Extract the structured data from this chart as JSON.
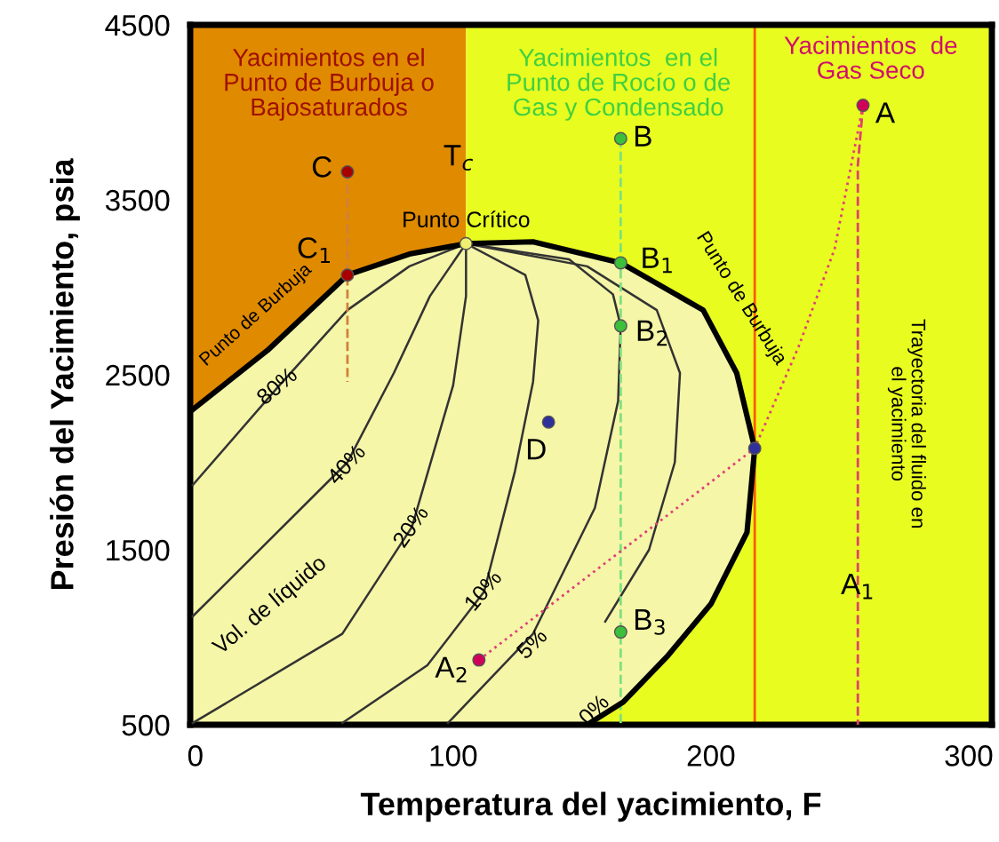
{
  "chart_data": {
    "type": "line",
    "xlabel": "Temperatura del yacimiento, F",
    "ylabel": "Presión del Yacimiento, psia",
    "xlim": [
      -2,
      309
    ],
    "ylim": [
      500,
      4500
    ],
    "xticks": [
      0,
      100,
      200,
      300
    ],
    "yticks": [
      500,
      1500,
      2500,
      3500,
      4500
    ],
    "grid": false,
    "bands": [
      {
        "axis": "x",
        "from": -2,
        "to": 105,
        "color": "#e08a00"
      },
      {
        "axis": "x",
        "from": 105,
        "to": 309,
        "color": "#e8fc20"
      }
    ],
    "ref_lines": [
      {
        "axis": "x",
        "value": 217,
        "color": "#ff5a00",
        "line_style": "solid"
      }
    ],
    "series": [
      {
        "type": "area",
        "color": "#f5f6a8",
        "x": [
          -2,
          28,
          59,
          83,
          105,
          131,
          165,
          197,
          210,
          217,
          214,
          200,
          183,
          166,
          152
        ],
        "values": [
          2290,
          2640,
          3070,
          3190,
          3250,
          3260,
          3140,
          2870,
          2510,
          2080,
          1600,
          1190,
          890,
          630,
          500
        ]
      },
      {
        "color": "#333333",
        "x": [
          105,
          83,
          59,
          32,
          -1
        ],
        "values": [
          3250,
          3120,
          2870,
          2430,
          1870
        ]
      },
      {
        "color": "#333333",
        "x": [
          105,
          91,
          77,
          59,
          -1
        ],
        "values": [
          3250,
          2950,
          2510,
          2000,
          1120
        ]
      },
      {
        "color": "#333333",
        "x": [
          105,
          105,
          100,
          84,
          57,
          -1
        ],
        "values": [
          3250,
          2950,
          2440,
          1630,
          1020,
          510
        ]
      },
      {
        "color": "#333333",
        "x": [
          105,
          128,
          133,
          131,
          124,
          112,
          90,
          57
        ],
        "values": [
          3250,
          3070,
          2810,
          2460,
          1950,
          1260,
          840,
          510
        ]
      },
      {
        "color": "#333333",
        "x": [
          105,
          145,
          162,
          165,
          164,
          155,
          131,
          98
        ],
        "values": [
          3250,
          3160,
          2960,
          2780,
          2350,
          1740,
          1020,
          510
        ]
      },
      {
        "color": "#333333",
        "x": [
          105,
          152,
          179,
          188,
          186,
          176,
          159
        ],
        "values": [
          3250,
          3120,
          2870,
          2510,
          2000,
          1500,
          1090
        ]
      },
      {
        "color": "#d0803c",
        "line_style": "dashed",
        "x": [
          59,
          59
        ],
        "values": [
          3660,
          2460
        ]
      },
      {
        "color": "#7ee07e",
        "line_style": "dashed",
        "x": [
          165,
          165
        ],
        "values": [
          3850,
          500
        ]
      },
      {
        "color": "#e0406a",
        "line_style": "dashed",
        "x": [
          259,
          257,
          257
        ],
        "values": [
          4040,
          3700,
          500
        ]
      },
      {
        "color": "#e0407a",
        "line_style": "dotted",
        "x": [
          110,
          217,
          234,
          248,
          259
        ],
        "values": [
          870,
          2080,
          2660,
          3220,
          4040
        ]
      },
      {
        "type": "scatter",
        "marker": "circle",
        "x": [
          59,
          59,
          105,
          165,
          165,
          165,
          165,
          259,
          110,
          137,
          217
        ],
        "values": [
          3660,
          3070,
          3250,
          3850,
          3140,
          2780,
          1030,
          4040,
          870,
          2230,
          2080
        ],
        "colors": [
          "#a80000",
          "#a80000",
          "#f0f070",
          "#3cc03c",
          "#3cc03c",
          "#3cc03c",
          "#3cc03c",
          "#d0005a",
          "#d0005a",
          "#30309a",
          "#30309a"
        ]
      }
    ],
    "annotations": [
      "Yacimientos en el\nPunto de Burbuja o\nBajosaturados",
      "Yacimientos  en el\nPunto de Rocío o de\nGas y Condensado",
      "Yacimientos  de\nGas Seco",
      {
        "text": "Punto Crítico",
        "x": 105,
        "y": 3250
      },
      "T$_{c}$",
      {
        "text": "C",
        "x": 59,
        "y": 3660
      },
      {
        "text": "C$_{1}$",
        "x": 59,
        "y": 3070
      },
      {
        "text": "B",
        "x": 165,
        "y": 3850
      },
      {
        "text": "B$_{1}$",
        "x": 165,
        "y": 3140
      },
      {
        "text": "B$_{2}$",
        "x": 165,
        "y": 2780
      },
      {
        "text": "B$_{3}$",
        "x": 165,
        "y": 1030
      },
      {
        "text": "A",
        "x": 259,
        "y": 4040
      },
      {
        "text": "A$_{1}$",
        "x": 257,
        "y": 1290
      },
      {
        "text": "A$_{2}$",
        "x": 110,
        "y": 870
      },
      {
        "text": "D",
        "x": 137,
        "y": 2230
      },
      "Punto de Burbuja",
      "Punto de Burbuja",
      "Vol. de líquido",
      {
        "text": "80%",
        "x": 32,
        "y": 2429
      },
      {
        "text": "40%",
        "x": 59,
        "y": 1982
      },
      {
        "text": "20%",
        "x": 84,
        "y": 1627
      },
      {
        "text": "10%",
        "x": 112,
        "y": 1261
      },
      {
        "text": "5%",
        "x": 131,
        "y": 957
      },
      {
        "text": "0%",
        "x": 155,
        "y": 580
      },
      "Trayectoria del fluido en\nel yacimiento"
    ]
  }
}
